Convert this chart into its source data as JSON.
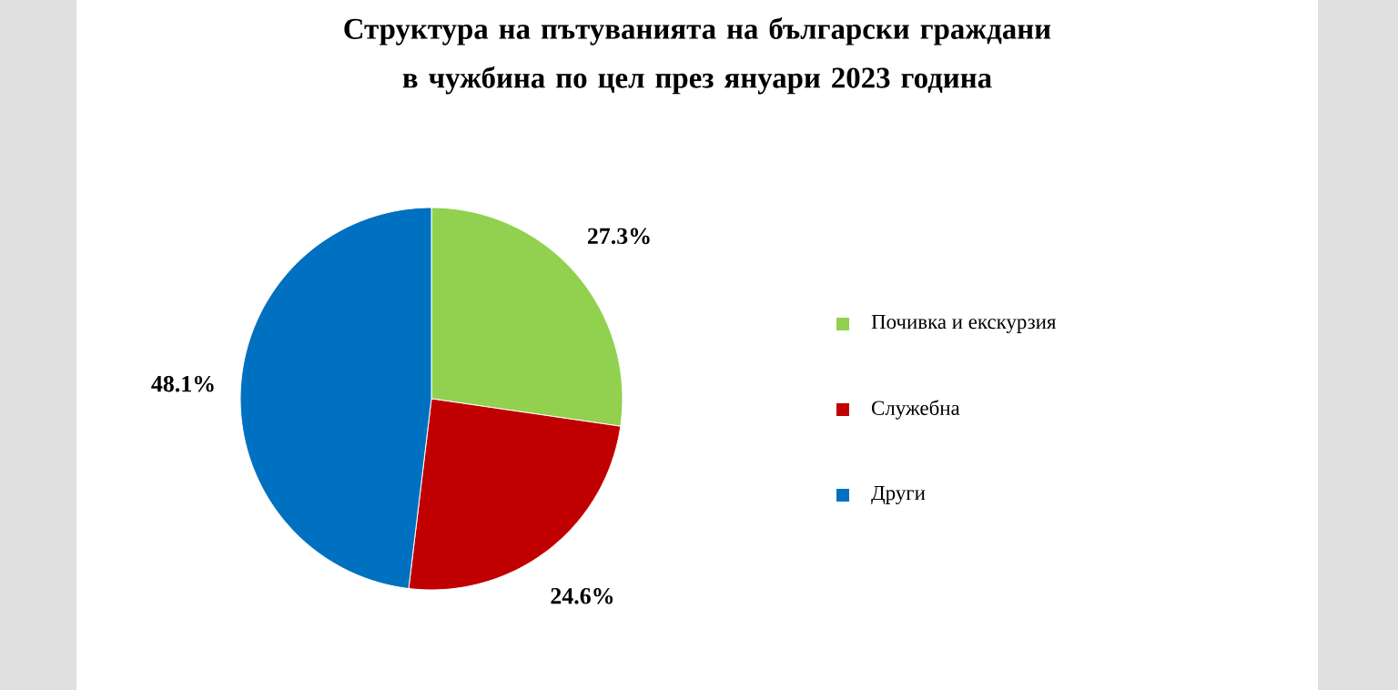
{
  "chart_data": {
    "type": "pie",
    "title": "Структура на пътуванията на български граждани в чужбина по цел през януари 2023 година",
    "categories": [
      "Почивка и екскурзия",
      "Служебна",
      "Други"
    ],
    "values": [
      27.3,
      24.6,
      48.1
    ],
    "colors": [
      "#92d050",
      "#c00000",
      "#0070c0"
    ],
    "value_labels": [
      "27.3%",
      "24.6%",
      "48.1%"
    ],
    "legend": "right"
  }
}
